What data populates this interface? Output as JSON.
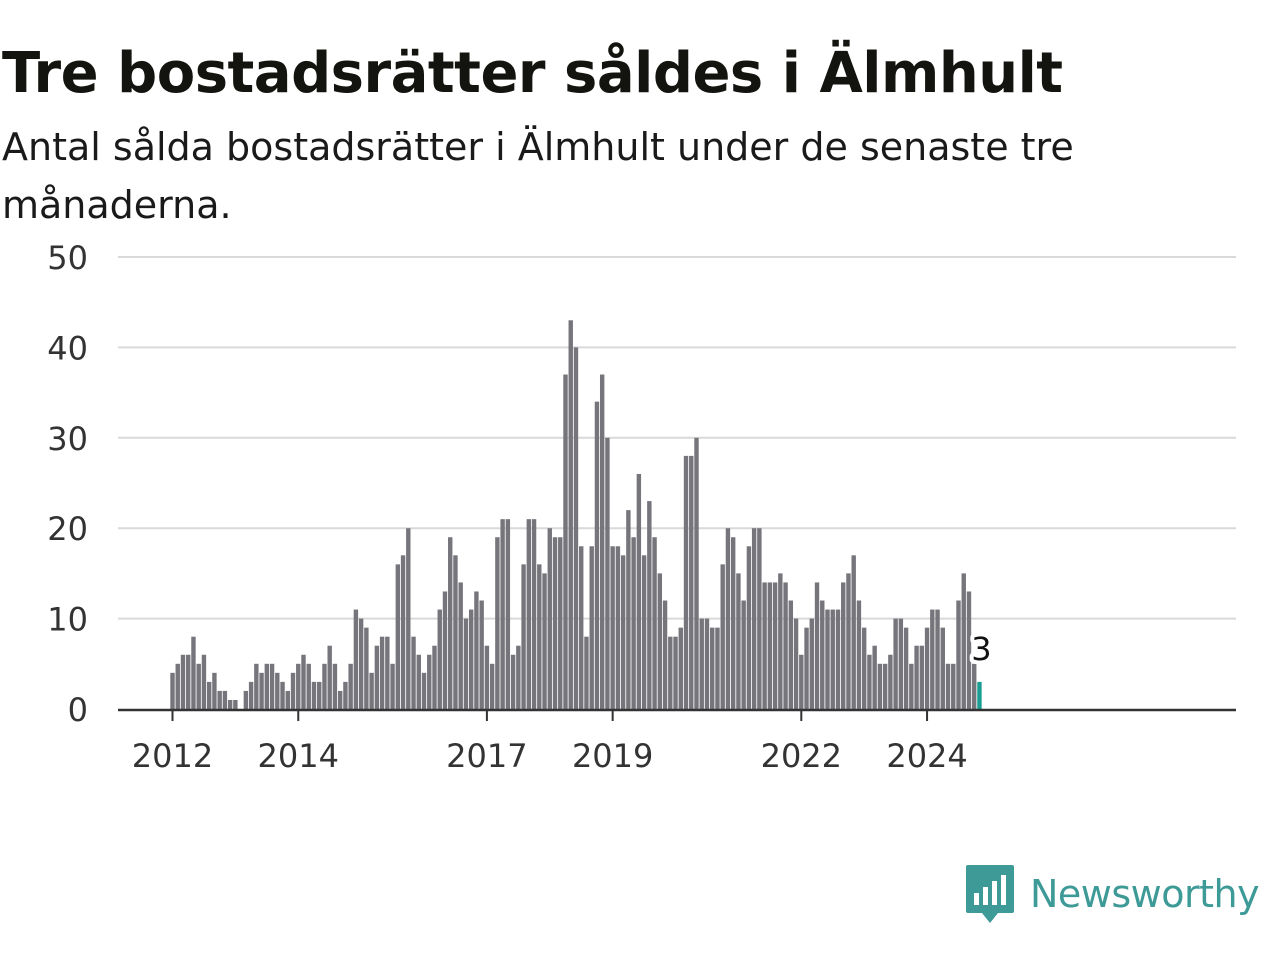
{
  "header": {
    "title": "Tre bostadsrätter såldes i Älmhult",
    "subtitle": "Antal sålda bostadsrätter i Älmhult under de senaste tre månaderna."
  },
  "brand": {
    "name": "Newsworthy",
    "icon": "newsworthy-logo-icon",
    "color": "#3d9a97"
  },
  "chart_data": {
    "type": "bar",
    "start": "2012-01",
    "x_ticks": [
      "2012",
      "2014",
      "2017",
      "2019",
      "2022",
      "2024"
    ],
    "y_ticks": [
      0,
      10,
      20,
      30,
      40,
      50
    ],
    "ylim": [
      0,
      50
    ],
    "grid": true,
    "bar_color": "#75757b",
    "highlight_color": "#1a9e93",
    "highlight_label": "3",
    "values": [
      4,
      5,
      6,
      6,
      8,
      5,
      6,
      3,
      4,
      2,
      2,
      1,
      1,
      0,
      2,
      3,
      5,
      4,
      5,
      5,
      4,
      3,
      2,
      4,
      5,
      6,
      5,
      3,
      3,
      5,
      7,
      5,
      2,
      3,
      5,
      11,
      10,
      9,
      4,
      7,
      8,
      8,
      5,
      16,
      17,
      20,
      8,
      6,
      4,
      6,
      7,
      11,
      13,
      19,
      17,
      14,
      10,
      11,
      13,
      12,
      7,
      5,
      19,
      21,
      21,
      6,
      7,
      16,
      21,
      21,
      16,
      15,
      20,
      19,
      19,
      37,
      43,
      40,
      18,
      8,
      18,
      34,
      37,
      30,
      18,
      18,
      17,
      22,
      19,
      26,
      17,
      23,
      19,
      15,
      12,
      8,
      8,
      9,
      28,
      28,
      30,
      10,
      10,
      9,
      9,
      16,
      20,
      19,
      15,
      12,
      18,
      20,
      20,
      14,
      14,
      14,
      15,
      14,
      12,
      10,
      6,
      9,
      10,
      14,
      12,
      11,
      11,
      11,
      14,
      15,
      17,
      12,
      9,
      6,
      7,
      5,
      5,
      6,
      10,
      10,
      9,
      5,
      7,
      7,
      9,
      11,
      11,
      9,
      5,
      5,
      12,
      15,
      13,
      5,
      3
    ]
  }
}
